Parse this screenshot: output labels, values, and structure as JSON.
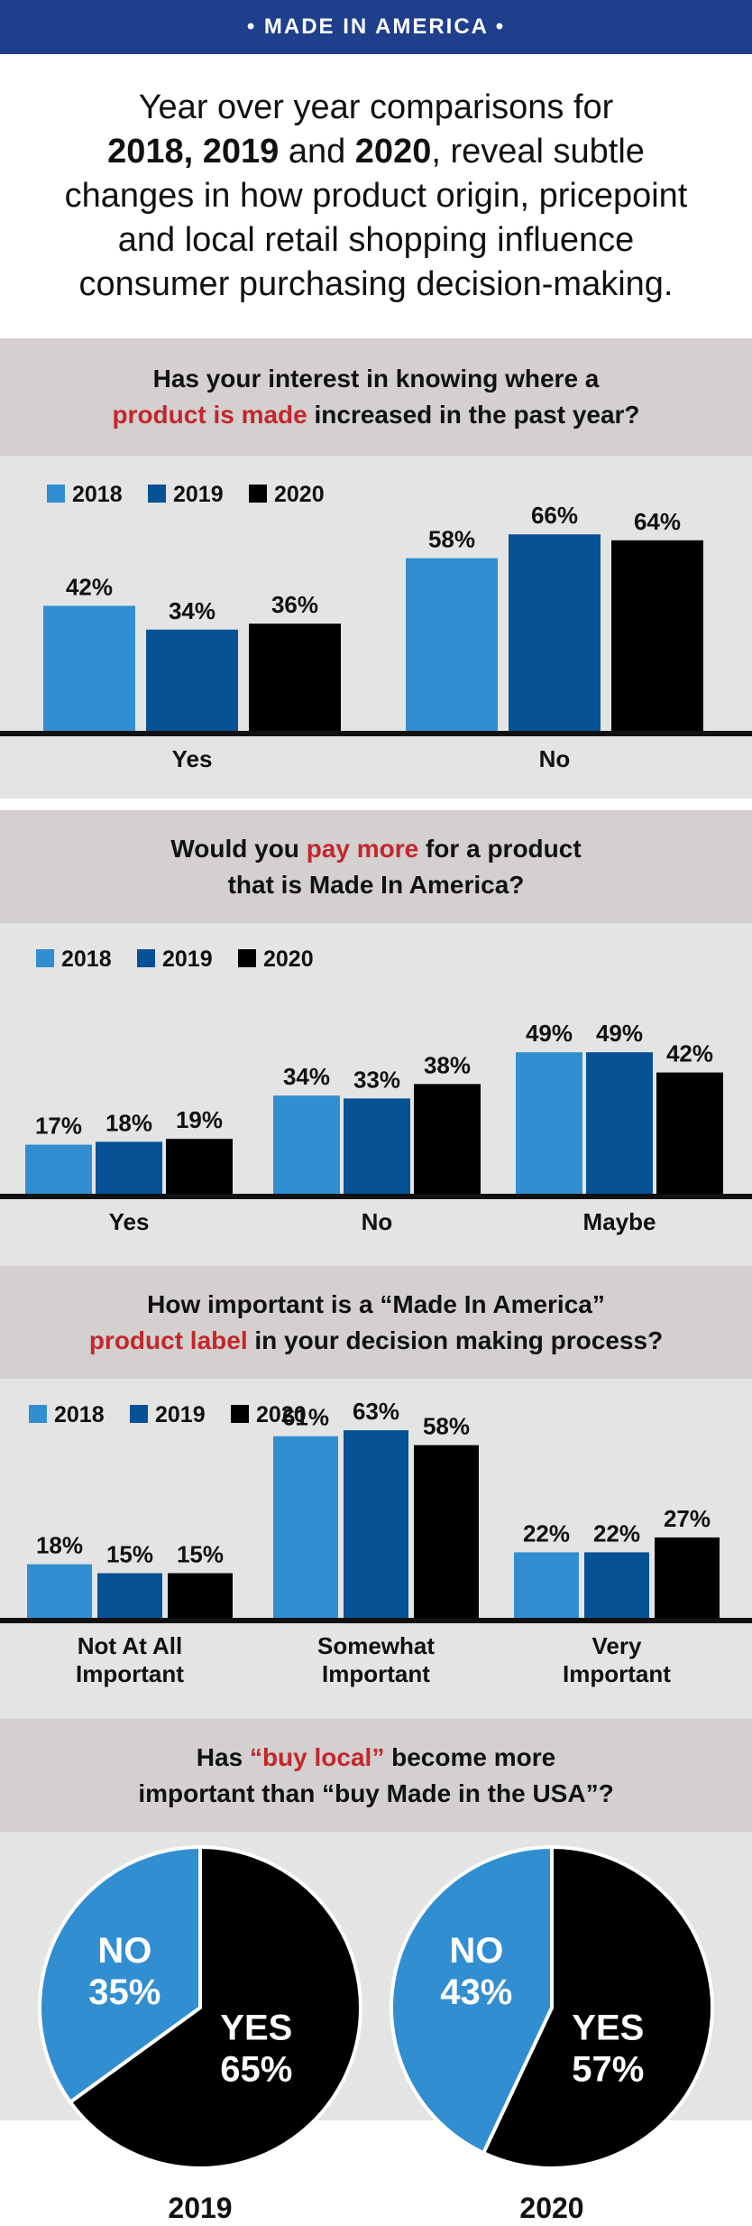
{
  "banner": {
    "title": "• MADE IN AMERICA •"
  },
  "intro": {
    "line1": "Year over year comparisons for",
    "years_bold_1": "2018, 2019",
    "and1": " and ",
    "years_bold_2": "2020",
    "rest": ", reveal subtle changes in how product origin, pricepoint and local retail shopping influence consumer purchasing decision-making."
  },
  "colors": {
    "y2018": "#318ed1",
    "y2019": "#075195",
    "y2020": "#000000",
    "highlight": "#c2272d",
    "panel_header": "#d3d0cf",
    "panel_bg": "#e5e4e4",
    "banner": "#1f3f8c"
  },
  "q1": {
    "pre": "Has your interest in knowing where a",
    "hl": "product is made",
    "post": " increased in the past year?"
  },
  "q2": {
    "pre": "Would you ",
    "hl": "pay more",
    "post": " for a product",
    "line2": "that is Made In America?"
  },
  "q3": {
    "pre": "How important is a “Made In America”",
    "hl": "product label",
    "post": " in your decision making process?"
  },
  "q4": {
    "pre": "Has ",
    "hl": "“buy local”",
    "post": " become more",
    "line2": "important than “buy Made in the USA”?"
  },
  "chart_data": [
    {
      "type": "bar",
      "title": "Has your interest in knowing where a product is made increased in the past year?",
      "categories": [
        "Yes",
        "No"
      ],
      "series": [
        {
          "name": "2018",
          "values": [
            42,
            58
          ]
        },
        {
          "name": "2019",
          "values": [
            34,
            66
          ]
        },
        {
          "name": "2020",
          "values": [
            36,
            64
          ]
        }
      ],
      "ylim": [
        0,
        70
      ],
      "legend": "top-left",
      "grid": false
    },
    {
      "type": "bar",
      "title": "Would you pay more for a product that is Made In America?",
      "categories": [
        "Yes",
        "No",
        "Maybe"
      ],
      "series": [
        {
          "name": "2018",
          "values": [
            17,
            34,
            49
          ]
        },
        {
          "name": "2019",
          "values": [
            18,
            33,
            49
          ]
        },
        {
          "name": "2020",
          "values": [
            19,
            38,
            42
          ]
        }
      ],
      "ylim": [
        0,
        60
      ],
      "legend": "top-left",
      "grid": false
    },
    {
      "type": "bar",
      "title": "How important is a “Made In America” product label in your decision making process?",
      "categories": [
        "Not At All Important",
        "Somewhat Important",
        "Very Important"
      ],
      "series": [
        {
          "name": "2018",
          "values": [
            18,
            61,
            22
          ]
        },
        {
          "name": "2019",
          "values": [
            15,
            63,
            22
          ]
        },
        {
          "name": "2020",
          "values": [
            15,
            58,
            27
          ]
        }
      ],
      "ylim": [
        0,
        70
      ],
      "legend": "top-left",
      "grid": false
    },
    {
      "type": "pie",
      "title": "Has “buy local” become more important than “buy Made in the USA”?",
      "pies": [
        {
          "label": "2019",
          "slices": [
            {
              "name": "NO",
              "value": 35
            },
            {
              "name": "YES",
              "value": 65
            }
          ]
        },
        {
          "label": "2020",
          "slices": [
            {
              "name": "NO",
              "value": 43
            },
            {
              "name": "YES",
              "value": 57
            }
          ]
        }
      ]
    }
  ]
}
